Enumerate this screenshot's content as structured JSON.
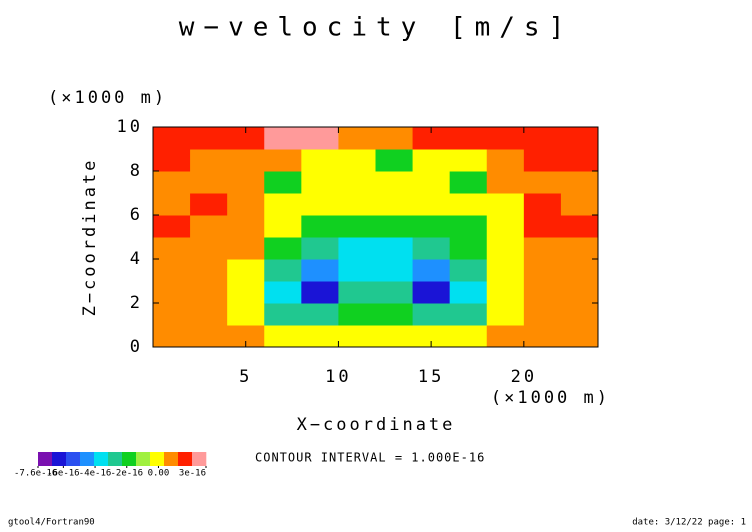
{
  "chart_data": {
    "type": "contour",
    "title": "w−velocity [m/s]",
    "x_unit": "(×1000 m)",
    "y_unit": "(×1000 m)",
    "x_label": "X−coordinate",
    "y_label": "Z−coordinate",
    "xlim": [
      0,
      24
    ],
    "ylim": [
      0,
      10
    ],
    "xticks": [
      5,
      10,
      15,
      20
    ],
    "yticks": [
      0,
      2,
      4,
      6,
      8,
      10
    ],
    "x": [
      1,
      3,
      5,
      7,
      9,
      11,
      13,
      15,
      17,
      19,
      21,
      23
    ],
    "y": [
      0.5,
      1.5,
      2.5,
      3.5,
      4.5,
      5.5,
      6.5,
      7.5,
      8.5,
      9.5
    ],
    "z": [
      [
        5e-17,
        5e-17,
        5e-17,
        -5e-17,
        -5e-17,
        -5e-17,
        -5e-17,
        -5e-17,
        -5e-17,
        5e-17,
        5e-17,
        5e-17
      ],
      [
        5e-17,
        5e-17,
        -5e-17,
        -2.5e-16,
        -2.5e-16,
        -1.5e-16,
        -1.5e-16,
        -2.5e-16,
        -2.5e-16,
        -5e-17,
        5e-17,
        5e-17
      ],
      [
        5e-17,
        5e-17,
        -5e-17,
        -3.5e-16,
        -6.5e-16,
        -2.5e-16,
        -2.5e-16,
        -6.5e-16,
        -3.5e-16,
        -5e-17,
        5e-17,
        5e-17
      ],
      [
        5e-17,
        5e-17,
        -5e-17,
        -2.5e-16,
        -4.5e-16,
        -3.5e-16,
        -3.5e-16,
        -4.5e-16,
        -2.5e-16,
        -5e-17,
        5e-17,
        5e-17
      ],
      [
        5e-17,
        5e-17,
        5e-17,
        -1.5e-16,
        -2.5e-16,
        -3.5e-16,
        -3.5e-16,
        -2.5e-16,
        -1.5e-16,
        -5e-17,
        5e-17,
        5e-17
      ],
      [
        1.5e-16,
        5e-17,
        5e-17,
        -5e-17,
        -1.5e-16,
        -1.5e-16,
        -1.5e-16,
        -1.5e-16,
        -1.5e-16,
        -5e-17,
        1.5e-16,
        1.5e-16
      ],
      [
        5e-17,
        1.5e-16,
        5e-17,
        -5e-17,
        -5e-17,
        -5e-17,
        -5e-17,
        -5e-17,
        -5e-17,
        -5e-17,
        1.5e-16,
        5e-17
      ],
      [
        5e-17,
        5e-17,
        5e-17,
        -1.5e-16,
        -5e-17,
        -5e-17,
        -5e-17,
        -5e-17,
        -1.5e-16,
        5e-17,
        5e-17,
        5e-17
      ],
      [
        1.5e-16,
        5e-17,
        5e-17,
        5e-17,
        -5e-17,
        -5e-17,
        -1.5e-16,
        -5e-17,
        -5e-17,
        5e-17,
        1.5e-16,
        1.5e-16
      ],
      [
        1.5e-16,
        1.5e-16,
        1.5e-16,
        2.5e-16,
        2.5e-16,
        5e-17,
        5e-17,
        1.5e-16,
        1.5e-16,
        1.5e-16,
        1.5e-16,
        1.5e-16
      ]
    ],
    "colorbar": {
      "colors": [
        "#7a10b0",
        "#1a14d6",
        "#2a50f0",
        "#1e90ff",
        "#00e0f0",
        "#20c890",
        "#10d020",
        "#a0f040",
        "#ffff00",
        "#ff8c00",
        "#ff2000",
        "#ff9a9a"
      ],
      "ticks": [
        -7.6e-16,
        -6e-16,
        -4e-16,
        -2e-16,
        {
          "value": 0,
          "label": "0.00"
        },
        3e-16
      ]
    },
    "contour_interval": "CONTOUR INTERVAL = 1.000E-16",
    "footer_left": "gtool4/Fortran90",
    "footer_right": "date: 3/12/22 page: 1"
  }
}
